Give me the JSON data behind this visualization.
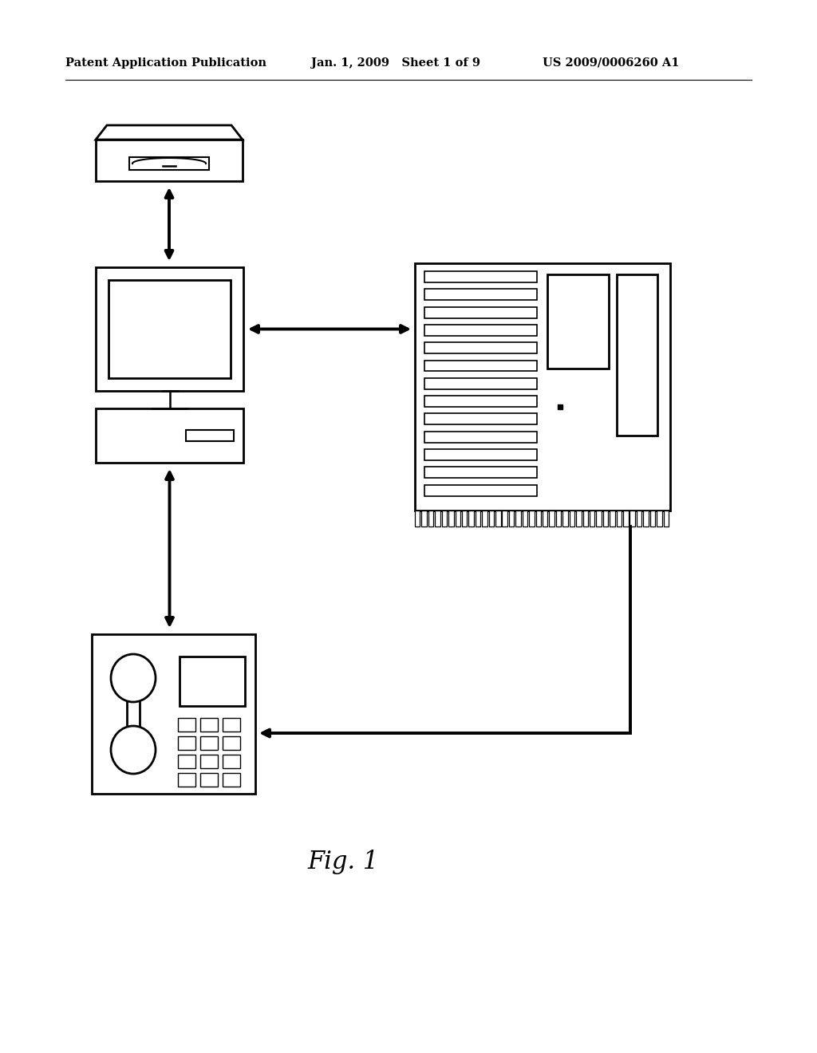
{
  "title": "Fig. 1",
  "header_left": "Patent Application Publication",
  "header_mid": "Jan. 1, 2009   Sheet 1 of 9",
  "header_right": "US 2009/0006260 A1",
  "bg_color": "#ffffff",
  "line_color": "#000000",
  "header_fontsize": 10.5,
  "title_fontsize": 22,
  "figsize": [
    10.24,
    13.2
  ],
  "dpi": 100
}
